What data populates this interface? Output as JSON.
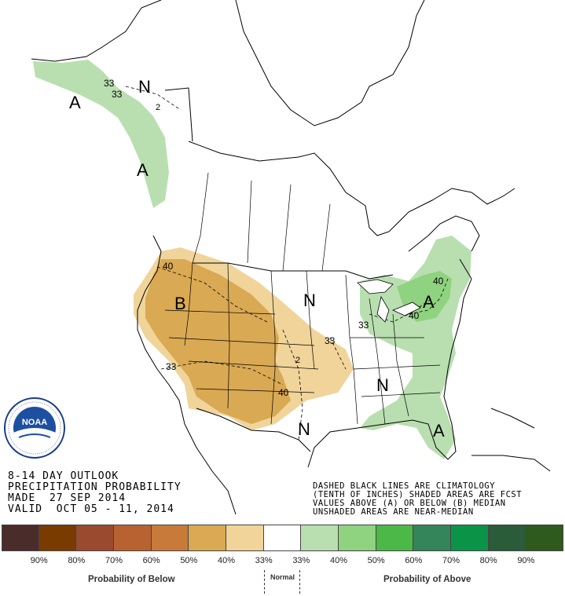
{
  "header": {
    "line1": "8-14 DAY OUTLOOK",
    "line2": "PRECIPITATION PROBABILITY",
    "line3": "MADE  27 SEP 2014",
    "line4": "VALID  OCT 05 - 11, 2014"
  },
  "notes": {
    "line1": "DASHED BLACK LINES ARE CLIMATOLOGY",
    "line2": "(TENTH OF INCHES) SHADED AREAS ARE FCST",
    "line3": "VALUES ABOVE (A) OR BELOW (B) MEDIAN",
    "line4": "UNSHADED AREAS ARE NEAR-MEDIAN"
  },
  "logo": {
    "text": "NOAA",
    "ring_text": "NATIONAL OCEANIC AND ATMOSPHERIC ADMINISTRATION · U.S. DEPARTMENT OF COMMERCE"
  },
  "map_labels": {
    "alaska_A": "A",
    "alaska_N": "N",
    "alaska_33a": "33",
    "alaska_33b": "33",
    "alaska_2": "2",
    "bc_A": "A",
    "west_B": "B",
    "west_40": "40",
    "sw_33": "33",
    "plains_2": "2",
    "plains_33": "33",
    "plains_40": "40",
    "central_N": "N",
    "south_N": "N",
    "se_N": "N",
    "east_A": "A",
    "east_40a": "40",
    "east_40b": "40",
    "east_33": "33",
    "fl_A": "A"
  },
  "legend": {
    "colors": [
      "#4a2c2a",
      "#7a3b00",
      "#9a4a2f",
      "#b86232",
      "#c87a3a",
      "#d9a953",
      "#f0d49a",
      "#ffffff",
      "#b9dfb0",
      "#8fd27f",
      "#4bb848",
      "#35855a",
      "#0b9448",
      "#2a5c3a",
      "#2e5a1e"
    ],
    "percents": [
      "90%",
      "80%",
      "70%",
      "60%",
      "50%",
      "40%",
      "33%",
      "33%",
      "40%",
      "50%",
      "60%",
      "70%",
      "80%",
      "90%"
    ],
    "below_caption": "Probability of Below",
    "normal_caption": "Normal",
    "above_caption": "Probability of Above"
  }
}
